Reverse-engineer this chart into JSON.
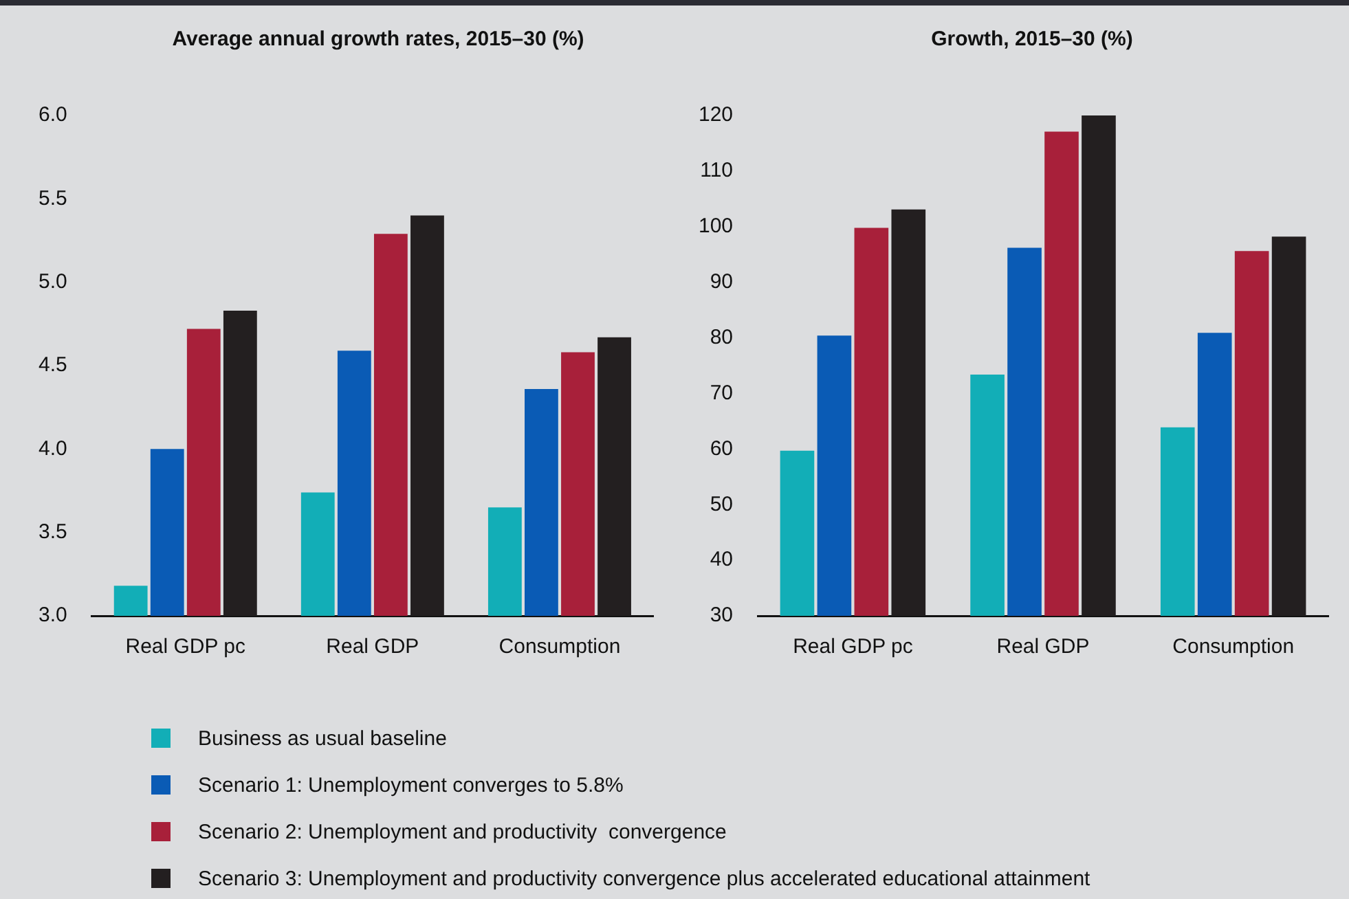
{
  "chart_data": [
    {
      "type": "bar",
      "title": "Average annual growth rates, 2015–30 (%)",
      "categories": [
        "Real GDP pc",
        "Real GDP",
        "Consumption"
      ],
      "ylim": [
        3.0,
        6.0
      ],
      "yticks": [
        {
          "value": 3,
          "label": "3.0"
        },
        {
          "value": 3.5,
          "label": "3.5"
        },
        {
          "value": 4,
          "label": "4.0"
        },
        {
          "value": 4.5,
          "label": "4.5"
        },
        {
          "value": 5,
          "label": "5.0"
        },
        {
          "value": 5.5,
          "label": "5.5"
        },
        {
          "value": 6,
          "label": "6.0"
        }
      ],
      "grid": false,
      "legend": "bottom",
      "series": [
        {
          "name": "Business as usual baseline",
          "color": "#12aeb7",
          "values": [
            3.18,
            3.74,
            3.65
          ]
        },
        {
          "name": "Scenario 1: Unemployment converges to 5.8%",
          "color": "#0a5bb5",
          "values": [
            4.0,
            4.59,
            4.36
          ]
        },
        {
          "name": "Scenario 2: Unemployment and productivity  convergence",
          "color": "#a8203a",
          "values": [
            4.72,
            5.29,
            4.58
          ]
        },
        {
          "name": "Scenario 3: Unemployment and productivity convergence plus accelerated educational attainment",
          "color": "#231f20",
          "values": [
            4.83,
            5.4,
            4.67
          ]
        }
      ]
    },
    {
      "type": "bar",
      "title": "Growth, 2015–30 (%)",
      "categories": [
        "Real GDP pc",
        "Real GDP",
        "Consumption"
      ],
      "ylim": [
        30,
        120
      ],
      "yticks": [
        30,
        40,
        50,
        60,
        70,
        80,
        90,
        100,
        110,
        120
      ],
      "grid": false,
      "series": [
        {
          "color": "#12aeb7",
          "values": [
            59.7,
            73.4,
            63.9
          ]
        },
        {
          "color": "#0a5bb5",
          "values": [
            80.4,
            96.2,
            80.9
          ]
        },
        {
          "color": "#a8203a",
          "values": [
            99.8,
            117.1,
            95.6
          ]
        },
        {
          "color": "#231f20",
          "values": [
            103.1,
            120,
            98.2
          ]
        }
      ]
    }
  ]
}
